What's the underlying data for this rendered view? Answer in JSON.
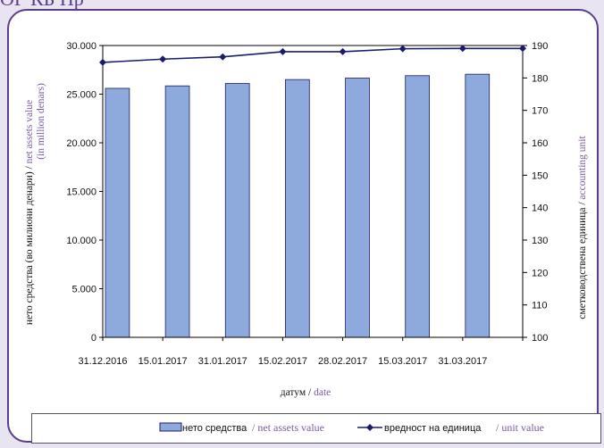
{
  "page": {
    "header_fragment": "ОГ КБ Пр"
  },
  "chart_data": {
    "type": "bar+line",
    "categories": [
      "31.12.2016",
      "15.01.2017",
      "31.01.2017",
      "15.02.2017",
      "28.02.2017",
      "15.03.2017",
      "31.03.2017"
    ],
    "series": [
      {
        "name": "нето средства / net assets value",
        "type": "bar",
        "axis": "left",
        "values": [
          25600,
          25850,
          26100,
          26500,
          26650,
          26900,
          27050
        ],
        "color": "#8eaadc"
      },
      {
        "name": "вредност на единица / unit value",
        "type": "line",
        "axis": "right",
        "values": [
          184.8,
          185.8,
          186.5,
          188.1,
          188.1,
          189.0,
          189.1
        ],
        "color": "#1b1b6e"
      }
    ],
    "y_left": {
      "min": 0,
      "max": 30000,
      "step": 5000,
      "ticks": [
        "0",
        "5.000",
        "10.000",
        "15.000",
        "20.000",
        "25.000",
        "30.000"
      ]
    },
    "y_right": {
      "min": 100,
      "max": 190,
      "step": 10,
      "ticks": [
        "100",
        "110",
        "120",
        "130",
        "140",
        "150",
        "160",
        "170",
        "180",
        "190"
      ]
    },
    "ylabel_left": {
      "black": "нето средства (во милиони денари)",
      "separator": " / ",
      "purple": "net assets value",
      "line2": "(in million denars)"
    },
    "ylabel_right": {
      "black": "сметководствена единица",
      "separator": " / ",
      "purple": "accounting unit"
    },
    "xlabel": {
      "black": "датум",
      "separator": " / ",
      "purple": "date"
    },
    "legend": {
      "position": "bottom",
      "bar_label_black": "нето средства",
      "bar_label_purple": "/ net assets value",
      "line_label_black": "вредност на единица",
      "line_label_purple": "/ unit value"
    }
  }
}
